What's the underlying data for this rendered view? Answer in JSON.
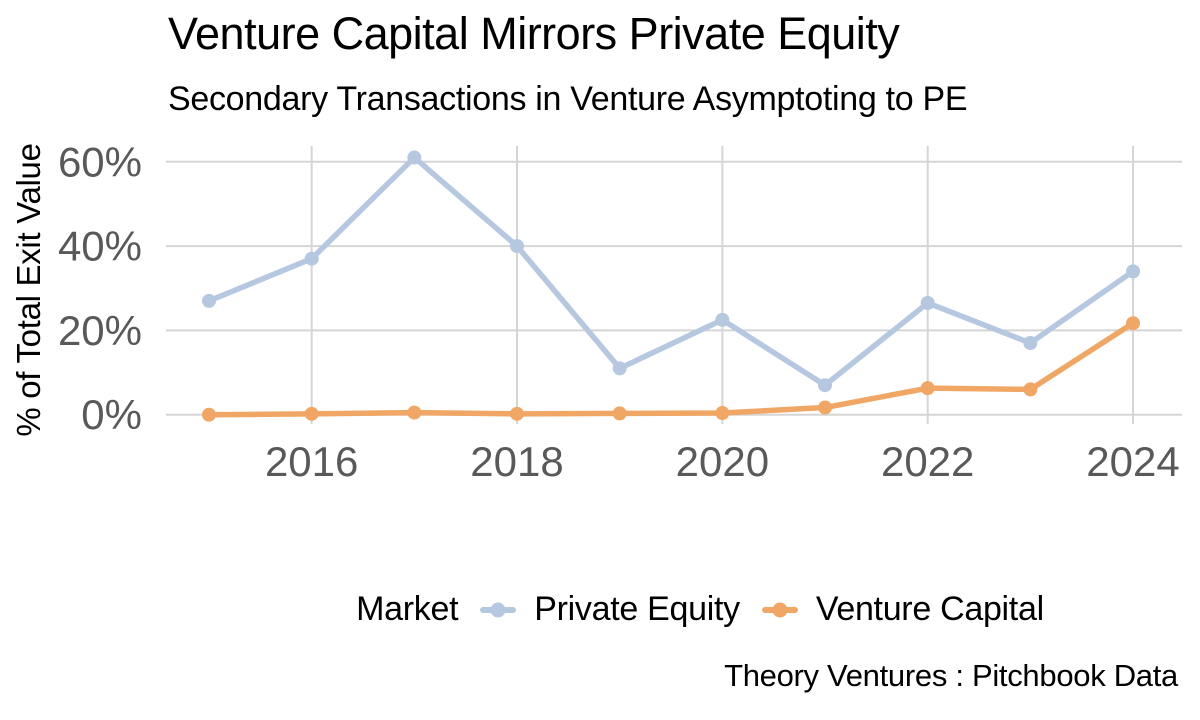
{
  "header": {
    "title": "Venture Capital Mirrors Private Equity",
    "subtitle": "Secondary Transactions in Venture Asymptoting to PE"
  },
  "chart_data": {
    "type": "line",
    "title": "Venture Capital Mirrors Private Equity",
    "subtitle": "Secondary Transactions in Venture Asymptoting to PE",
    "ylabel": "% of Total Exit Value",
    "xlabel": "",
    "legend_title": "Market",
    "legend_position": "bottom",
    "grid": true,
    "x": [
      2015,
      2016,
      2017,
      2018,
      2019,
      2020,
      2021,
      2022,
      2023,
      2024
    ],
    "series": [
      {
        "name": "Private Equity",
        "color": "#b5c8e0",
        "values": [
          27,
          37,
          61,
          40,
          11,
          22.5,
          7,
          26.5,
          17,
          34
        ]
      },
      {
        "name": "Venture Capital",
        "color": "#f0a765",
        "values": [
          0,
          0.2,
          0.5,
          0.2,
          0.3,
          0.4,
          1.7,
          6.3,
          6,
          21.7
        ]
      }
    ],
    "yticks": [
      0,
      20,
      40,
      60
    ],
    "ytick_labels": [
      "0%",
      "20%",
      "40%",
      "60%"
    ],
    "xticks": [
      2016,
      2018,
      2020,
      2022,
      2024
    ],
    "xtick_labels": [
      "2016",
      "2018",
      "2020",
      "2022",
      "2024"
    ],
    "ylim": [
      0,
      64
    ],
    "xlim": [
      2014.6,
      2024.5
    ],
    "grid_color": "#d5d5d5",
    "tick_color": "#595959"
  },
  "caption": "Theory Ventures : Pitchbook Data"
}
